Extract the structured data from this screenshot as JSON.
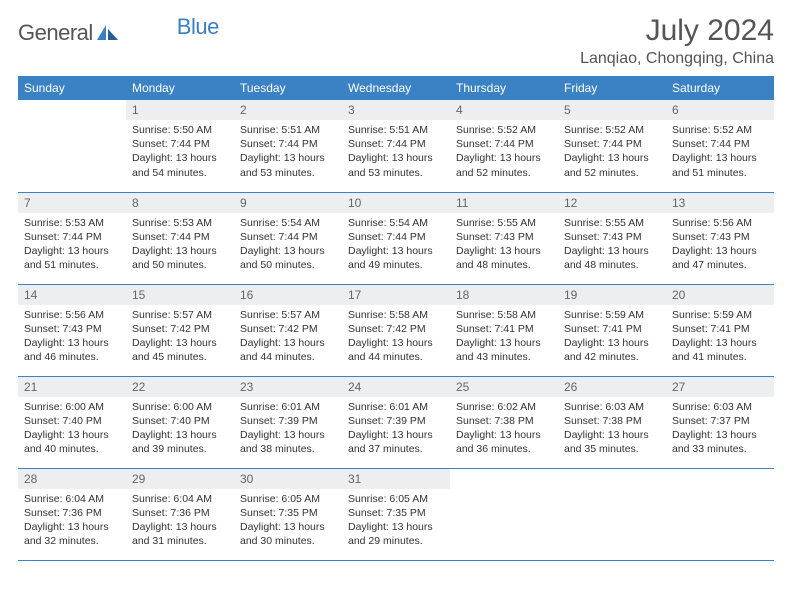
{
  "brand": {
    "part1": "General",
    "part2": "Blue"
  },
  "title": "July 2024",
  "location": "Lanqiao, Chongqing, China",
  "colors": {
    "header_bg": "#3b82c4",
    "header_text": "#ffffff",
    "daynum_bg": "#eceef0",
    "border": "#3b82c4",
    "text": "#333333",
    "brand_gray": "#555555",
    "brand_blue": "#3b7fc4"
  },
  "weekdays": [
    "Sunday",
    "Monday",
    "Tuesday",
    "Wednesday",
    "Thursday",
    "Friday",
    "Saturday"
  ],
  "first_weekday_index": 1,
  "days": [
    {
      "n": 1,
      "sunrise": "5:50 AM",
      "sunset": "7:44 PM",
      "daylight": "13 hours and 54 minutes."
    },
    {
      "n": 2,
      "sunrise": "5:51 AM",
      "sunset": "7:44 PM",
      "daylight": "13 hours and 53 minutes."
    },
    {
      "n": 3,
      "sunrise": "5:51 AM",
      "sunset": "7:44 PM",
      "daylight": "13 hours and 53 minutes."
    },
    {
      "n": 4,
      "sunrise": "5:52 AM",
      "sunset": "7:44 PM",
      "daylight": "13 hours and 52 minutes."
    },
    {
      "n": 5,
      "sunrise": "5:52 AM",
      "sunset": "7:44 PM",
      "daylight": "13 hours and 52 minutes."
    },
    {
      "n": 6,
      "sunrise": "5:52 AM",
      "sunset": "7:44 PM",
      "daylight": "13 hours and 51 minutes."
    },
    {
      "n": 7,
      "sunrise": "5:53 AM",
      "sunset": "7:44 PM",
      "daylight": "13 hours and 51 minutes."
    },
    {
      "n": 8,
      "sunrise": "5:53 AM",
      "sunset": "7:44 PM",
      "daylight": "13 hours and 50 minutes."
    },
    {
      "n": 9,
      "sunrise": "5:54 AM",
      "sunset": "7:44 PM",
      "daylight": "13 hours and 50 minutes."
    },
    {
      "n": 10,
      "sunrise": "5:54 AM",
      "sunset": "7:44 PM",
      "daylight": "13 hours and 49 minutes."
    },
    {
      "n": 11,
      "sunrise": "5:55 AM",
      "sunset": "7:43 PM",
      "daylight": "13 hours and 48 minutes."
    },
    {
      "n": 12,
      "sunrise": "5:55 AM",
      "sunset": "7:43 PM",
      "daylight": "13 hours and 48 minutes."
    },
    {
      "n": 13,
      "sunrise": "5:56 AM",
      "sunset": "7:43 PM",
      "daylight": "13 hours and 47 minutes."
    },
    {
      "n": 14,
      "sunrise": "5:56 AM",
      "sunset": "7:43 PM",
      "daylight": "13 hours and 46 minutes."
    },
    {
      "n": 15,
      "sunrise": "5:57 AM",
      "sunset": "7:42 PM",
      "daylight": "13 hours and 45 minutes."
    },
    {
      "n": 16,
      "sunrise": "5:57 AM",
      "sunset": "7:42 PM",
      "daylight": "13 hours and 44 minutes."
    },
    {
      "n": 17,
      "sunrise": "5:58 AM",
      "sunset": "7:42 PM",
      "daylight": "13 hours and 44 minutes."
    },
    {
      "n": 18,
      "sunrise": "5:58 AM",
      "sunset": "7:41 PM",
      "daylight": "13 hours and 43 minutes."
    },
    {
      "n": 19,
      "sunrise": "5:59 AM",
      "sunset": "7:41 PM",
      "daylight": "13 hours and 42 minutes."
    },
    {
      "n": 20,
      "sunrise": "5:59 AM",
      "sunset": "7:41 PM",
      "daylight": "13 hours and 41 minutes."
    },
    {
      "n": 21,
      "sunrise": "6:00 AM",
      "sunset": "7:40 PM",
      "daylight": "13 hours and 40 minutes."
    },
    {
      "n": 22,
      "sunrise": "6:00 AM",
      "sunset": "7:40 PM",
      "daylight": "13 hours and 39 minutes."
    },
    {
      "n": 23,
      "sunrise": "6:01 AM",
      "sunset": "7:39 PM",
      "daylight": "13 hours and 38 minutes."
    },
    {
      "n": 24,
      "sunrise": "6:01 AM",
      "sunset": "7:39 PM",
      "daylight": "13 hours and 37 minutes."
    },
    {
      "n": 25,
      "sunrise": "6:02 AM",
      "sunset": "7:38 PM",
      "daylight": "13 hours and 36 minutes."
    },
    {
      "n": 26,
      "sunrise": "6:03 AM",
      "sunset": "7:38 PM",
      "daylight": "13 hours and 35 minutes."
    },
    {
      "n": 27,
      "sunrise": "6:03 AM",
      "sunset": "7:37 PM",
      "daylight": "13 hours and 33 minutes."
    },
    {
      "n": 28,
      "sunrise": "6:04 AM",
      "sunset": "7:36 PM",
      "daylight": "13 hours and 32 minutes."
    },
    {
      "n": 29,
      "sunrise": "6:04 AM",
      "sunset": "7:36 PM",
      "daylight": "13 hours and 31 minutes."
    },
    {
      "n": 30,
      "sunrise": "6:05 AM",
      "sunset": "7:35 PM",
      "daylight": "13 hours and 30 minutes."
    },
    {
      "n": 31,
      "sunrise": "6:05 AM",
      "sunset": "7:35 PM",
      "daylight": "13 hours and 29 minutes."
    }
  ],
  "labels": {
    "sunrise": "Sunrise:",
    "sunset": "Sunset:",
    "daylight": "Daylight:"
  }
}
